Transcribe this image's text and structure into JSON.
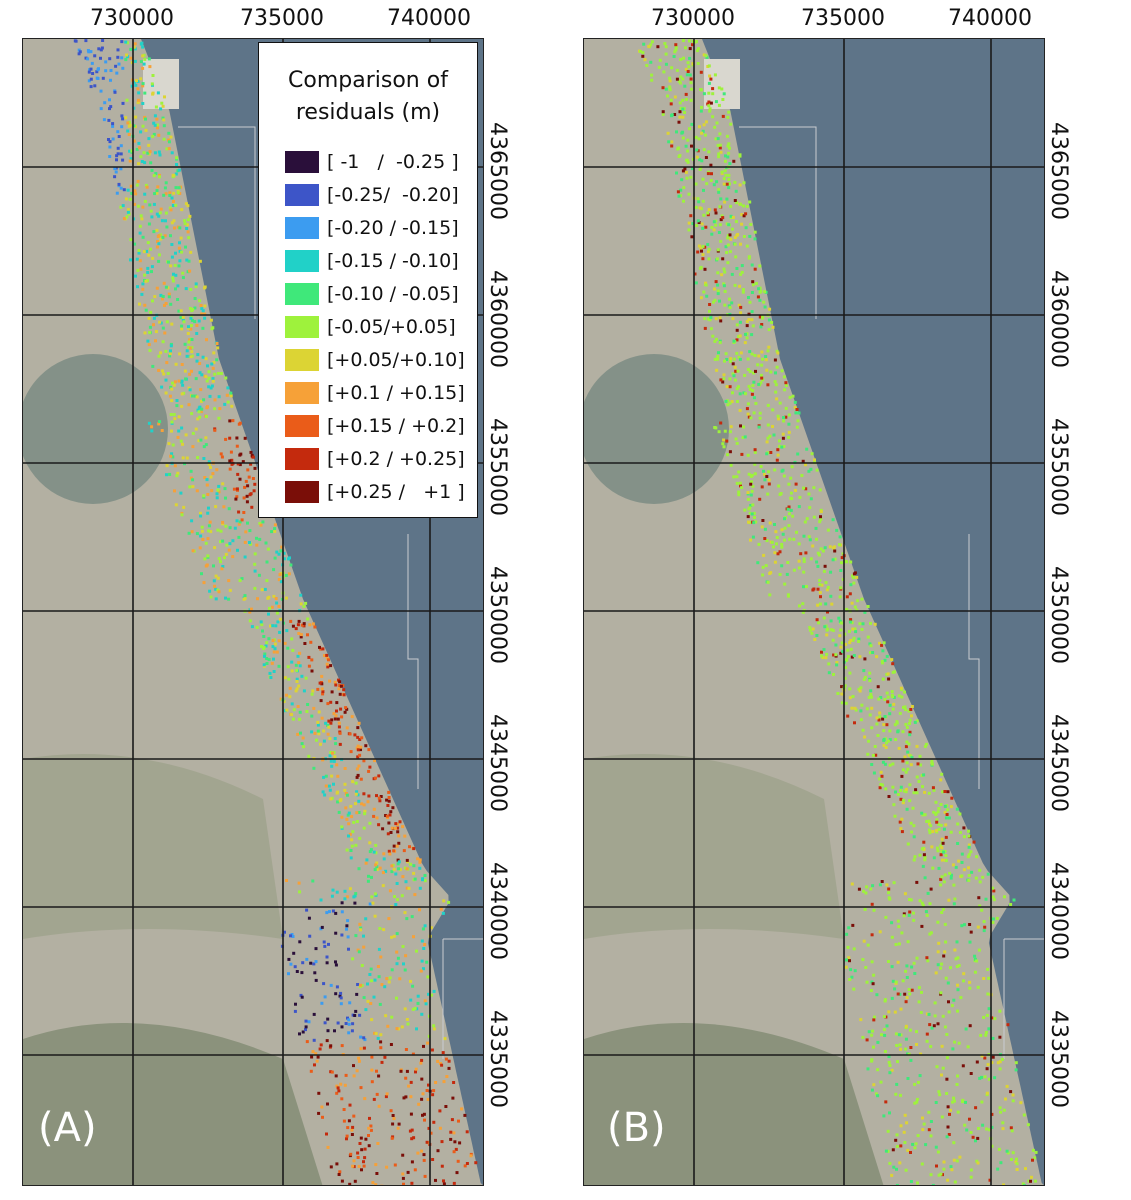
{
  "x_axis": {
    "ticks": [
      "730000",
      "735000",
      "740000"
    ]
  },
  "y_axis": {
    "ticks": [
      "4365000",
      "4360000",
      "4355000",
      "4350000",
      "4345000",
      "4340000",
      "4335000"
    ]
  },
  "panels": [
    {
      "id": "A",
      "label": "(A)"
    },
    {
      "id": "B",
      "label": "(B)"
    }
  ],
  "legend": {
    "title_line1": "Comparison of",
    "title_line2": "residuals (m)",
    "items": [
      {
        "label": "[ -1   /  -0.25 ]",
        "color": "#2a0f3a"
      },
      {
        "label": "[-0.25/  -0.20]",
        "color": "#3d55c8"
      },
      {
        "label": "[-0.20 / -0.15]",
        "color": "#3c9cf0"
      },
      {
        "label": "[-0.15 / -0.10]",
        "color": "#21d1c8"
      },
      {
        "label": "[-0.10 / -0.05]",
        "color": "#3fe87a"
      },
      {
        "label": "[-0.05/+0.05]",
        "color": "#9ef23c"
      },
      {
        "label": "[+0.05/+0.10]",
        "color": "#dcd434"
      },
      {
        "label": "[+0.1 / +0.15]",
        "color": "#f6a138"
      },
      {
        "label": "[+0.15 / +0.2]",
        "color": "#ea5c19"
      },
      {
        "label": "[+0.2 / +0.25]",
        "color": "#c42a0d"
      },
      {
        "label": "[+0.25 /   +1 ]",
        "color": "#7a0e08"
      }
    ]
  },
  "colors": {
    "sea": "#5e7488",
    "land": "#b3b0a2",
    "grid": "#1a1a1a"
  }
}
